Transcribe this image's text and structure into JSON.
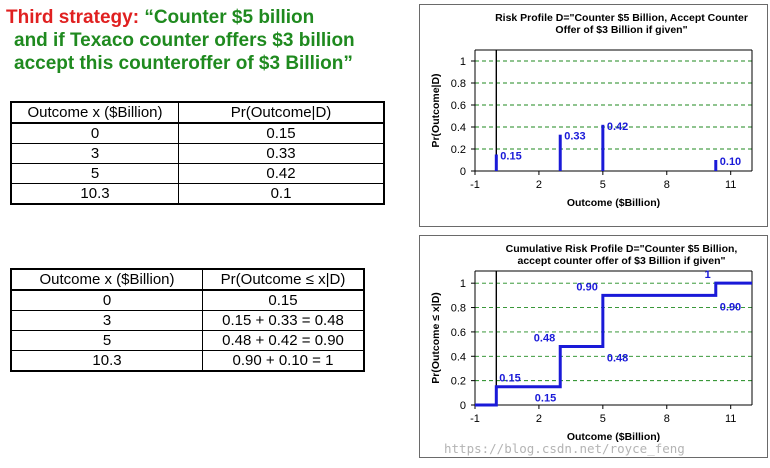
{
  "heading": {
    "prefix": "Third strategy:",
    "line1": "“Counter $5 billion",
    "line2": "and if Texaco counter offers $3 billion",
    "line3": "accept this counteroffer of $3 Billion”",
    "prefix_color": "#e02020",
    "text_color": "#1f8a1f"
  },
  "table1": {
    "headers": [
      "Outcome x ($Billion)",
      "Pr(Outcome|D)"
    ],
    "rows": [
      [
        "0",
        "0.15"
      ],
      [
        "3",
        "0.33"
      ],
      [
        "5",
        "0.42"
      ],
      [
        "10.3",
        "0.1"
      ]
    ]
  },
  "table2": {
    "headers": [
      "Outcome x ($Billion)",
      "Pr(Outcome ≤ x|D)"
    ],
    "rows": [
      [
        "0",
        "0.15"
      ],
      [
        "3",
        "0.15 + 0.33 = 0.48"
      ],
      [
        "5",
        "0.48 + 0.42 = 0.90"
      ],
      [
        "10.3",
        "0.90 + 0.10 = 1"
      ]
    ]
  },
  "chart_data": [
    {
      "type": "bar",
      "title_lines": [
        "Risk Profile D=\"Counter $5 Billion, Accept Counter",
        "Offer of $3 Billion if given\""
      ],
      "xlabel": "Outcome ($Billion)",
      "ylabel": "Pr(Outcome|D)",
      "xlim": [
        -1,
        12
      ],
      "ylim": [
        0,
        1.1
      ],
      "xticks": [
        -1,
        2,
        5,
        8,
        11
      ],
      "yticks": [
        0,
        0.2,
        0.4,
        0.6,
        0.8,
        1
      ],
      "x": [
        0,
        3,
        5,
        10.3
      ],
      "values": [
        0.15,
        0.33,
        0.42,
        0.1
      ],
      "labels": [
        "0.15",
        "0.33",
        "0.42",
        "0.10"
      ],
      "grid": "dashed-horizontal",
      "color": "#1a1ad8"
    },
    {
      "type": "line",
      "title_lines": [
        "Cumulative Risk Profile D=\"Counter $5 Billion,",
        "accept counter offer of $3 Billion if given\""
      ],
      "xlabel": "Outcome ($Billion)",
      "ylabel": "Pr(Outcome ≤ x|D)",
      "xlim": [
        -1,
        12
      ],
      "ylim": [
        0,
        1.1
      ],
      "xticks": [
        -1,
        2,
        5,
        8,
        11
      ],
      "yticks": [
        0,
        0.2,
        0.4,
        0.6,
        0.8,
        1
      ],
      "step_x": [
        -1,
        0,
        3,
        5,
        10.3,
        12
      ],
      "step_y": [
        0,
        0.15,
        0.48,
        0.9,
        1
      ],
      "annotations": [
        {
          "text": "0.15",
          "x": 0,
          "y": 0.15,
          "pos": "above"
        },
        {
          "text": "0.15",
          "x": 3,
          "y": 0.15,
          "pos": "below-left"
        },
        {
          "text": "0.48",
          "x": 3,
          "y": 0.48,
          "pos": "above-left"
        },
        {
          "text": "0.48",
          "x": 5,
          "y": 0.48,
          "pos": "below-right"
        },
        {
          "text": "0.90",
          "x": 5,
          "y": 0.9,
          "pos": "above-left"
        },
        {
          "text": "0.90",
          "x": 10.3,
          "y": 0.9,
          "pos": "below-right"
        },
        {
          "text": "1",
          "x": 10.3,
          "y": 1,
          "pos": "above-left"
        }
      ],
      "grid": "dashed-horizontal",
      "color": "#1a1ad8"
    }
  ],
  "watermark": "https://blog.csdn.net/royce_feng"
}
